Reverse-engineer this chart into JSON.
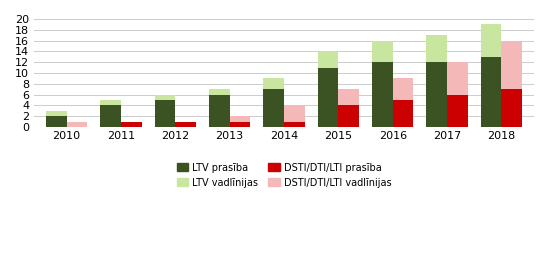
{
  "years": [
    2010,
    2011,
    2012,
    2013,
    2014,
    2015,
    2016,
    2017,
    2018
  ],
  "ltv_prasiba": [
    2,
    4,
    5,
    6,
    7,
    11,
    12,
    12,
    13
  ],
  "ltv_vadlinijas": [
    1,
    1,
    1,
    1,
    2,
    3,
    4,
    5,
    6
  ],
  "dsti_prasiba": [
    0,
    1,
    1,
    1,
    1,
    4,
    5,
    6,
    7
  ],
  "dsti_vadlinijas": [
    1,
    0,
    0,
    1,
    3,
    3,
    4,
    6,
    9
  ],
  "colors": {
    "ltv_prasiba": "#3b5323",
    "ltv_vadlinijas": "#c8e6a0",
    "dsti_prasiba": "#cc0000",
    "dsti_vadlinijas": "#f4b8b8"
  },
  "ylim": [
    0,
    20
  ],
  "yticks": [
    0,
    2,
    4,
    6,
    8,
    10,
    12,
    14,
    16,
    18,
    20
  ],
  "legend_labels": [
    "LTV prasība",
    "LTV vadlīnijas",
    "DSTI/DTI/LTI prasība",
    "DSTI/DTI/LTI vadlīnijas"
  ],
  "background_color": "#ffffff",
  "grid_color": "#cccccc",
  "bar_width": 0.38
}
